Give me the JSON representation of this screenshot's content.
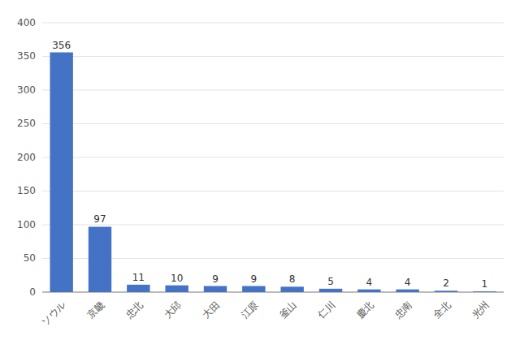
{
  "chart_data": {
    "type": "bar",
    "categories": [
      "ソウル",
      "京畿",
      "忠北",
      "大邱",
      "大田",
      "江原",
      "釜山",
      "仁川",
      "慶北",
      "忠南",
      "全北",
      "光州"
    ],
    "values": [
      356,
      97,
      11,
      10,
      9,
      9,
      8,
      5,
      4,
      4,
      2,
      1
    ],
    "color": "#4472C4",
    "ylim": [
      0,
      400
    ],
    "yticks": [
      0,
      50,
      100,
      150,
      200,
      250,
      300,
      350,
      400
    ],
    "grid": true,
    "data_labels": true
  }
}
